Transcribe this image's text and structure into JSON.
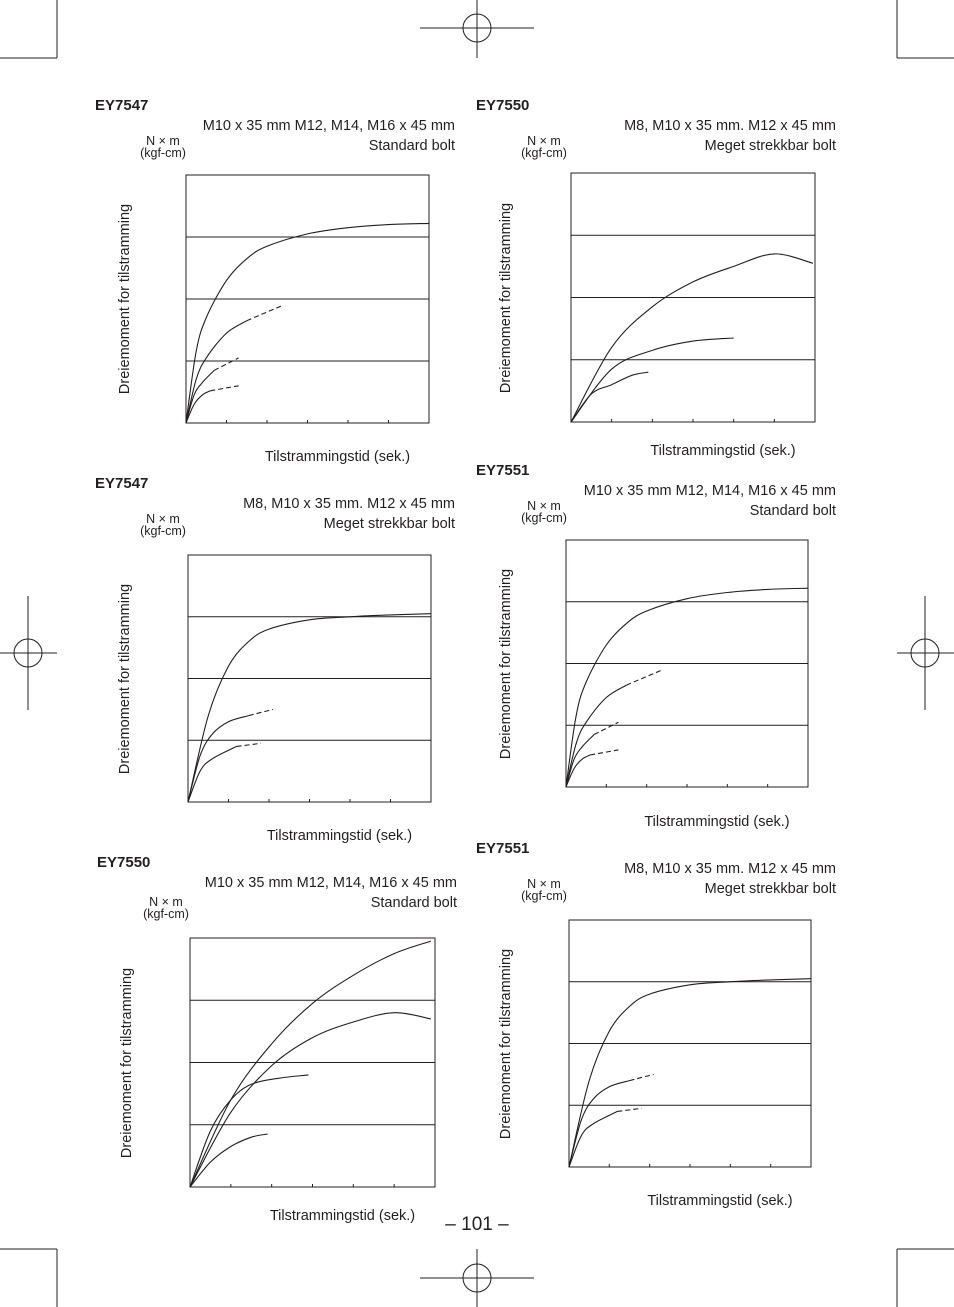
{
  "page": {
    "number_label": "– 101 –"
  },
  "chart_data": [
    {
      "type": "line",
      "title": "EY7547",
      "subtitle_lines": [
        "M10 x 35 mm M12, M14, M16 x 45 mm",
        "Standard bolt"
      ],
      "unit_lines": [
        "N × m",
        "(kgf-cm)"
      ],
      "ylabel": "Dreiemoment for tilstramming",
      "xlabel": "Tilstrammingstid (sek.)",
      "xlim": [
        0,
        6
      ],
      "ylim": [
        0,
        4
      ],
      "grid": "horizontal",
      "series": [
        {
          "x": [
            0,
            0.25,
            0.5,
            1,
            1.5,
            2,
            3,
            4,
            5,
            6
          ],
          "y": [
            0,
            1.15,
            1.7,
            2.3,
            2.65,
            2.85,
            3.05,
            3.15,
            3.2,
            3.22
          ]
        },
        {
          "x": [
            0,
            0.25,
            0.5,
            1,
            1.5
          ],
          "y": [
            0,
            0.7,
            1.05,
            1.45,
            1.65
          ]
        },
        {
          "x": [
            1.5,
            2.4
          ],
          "y": [
            1.65,
            1.9
          ],
          "dashed": true
        },
        {
          "x": [
            0,
            0.2,
            0.4,
            0.7
          ],
          "y": [
            0,
            0.45,
            0.65,
            0.85
          ]
        },
        {
          "x": [
            0.7,
            1.3
          ],
          "y": [
            0.85,
            1.05
          ],
          "dashed": true
        },
        {
          "x": [
            0,
            0.2,
            0.4,
            0.6
          ],
          "y": [
            0,
            0.3,
            0.45,
            0.52
          ]
        },
        {
          "x": [
            0.6,
            1.3
          ],
          "y": [
            0.52,
            0.6
          ],
          "dashed": true
        }
      ]
    },
    {
      "type": "line",
      "title": "EY7547",
      "subtitle_lines": [
        "M8, M10 x 35 mm. M12 x 45 mm",
        "Meget strekkbar bolt"
      ],
      "unit_lines": [
        "N × m",
        "(kgf-cm)"
      ],
      "ylabel": "Dreiemoment for tilstramming",
      "xlabel": "Tilstrammingstid (sek.)",
      "xlim": [
        0,
        6
      ],
      "ylim": [
        0,
        4
      ],
      "grid": "horizontal",
      "series": [
        {
          "x": [
            0,
            0.5,
            1,
            1.5,
            2,
            3,
            4,
            5,
            6
          ],
          "y": [
            0,
            1.4,
            2.2,
            2.6,
            2.8,
            2.95,
            3.0,
            3.03,
            3.05
          ]
        },
        {
          "x": [
            0,
            0.3,
            0.6,
            1,
            1.5
          ],
          "y": [
            0,
            0.75,
            1.1,
            1.3,
            1.4
          ]
        },
        {
          "x": [
            1.5,
            2.1
          ],
          "y": [
            1.4,
            1.5
          ],
          "dashed": true
        },
        {
          "x": [
            0,
            0.3,
            0.6,
            1.2
          ],
          "y": [
            0,
            0.5,
            0.7,
            0.9
          ]
        },
        {
          "x": [
            1.2,
            1.8
          ],
          "y": [
            0.9,
            0.95
          ],
          "dashed": true
        }
      ]
    },
    {
      "type": "line",
      "title": "EY7550",
      "subtitle_lines": [
        "M10 x 35 mm M12, M14, M16 x 45 mm",
        "Standard bolt"
      ],
      "unit_lines": [
        "N × m",
        "(kgf-cm)"
      ],
      "ylabel": "Dreiemoment for tilstramming",
      "xlabel": "Tilstrammingstid (sek.)",
      "xlim": [
        0,
        6
      ],
      "ylim": [
        0,
        4
      ],
      "grid": "horizontal",
      "series": [
        {
          "x": [
            0,
            1,
            2,
            3,
            4,
            5,
            5.9
          ],
          "y": [
            0,
            1.4,
            2.3,
            2.95,
            3.4,
            3.75,
            3.95
          ]
        },
        {
          "x": [
            0,
            1,
            2,
            3,
            4,
            5,
            5.9
          ],
          "y": [
            0,
            1.2,
            1.95,
            2.4,
            2.65,
            2.8,
            2.7
          ]
        },
        {
          "x": [
            0,
            0.5,
            1,
            1.5,
            2.2,
            2.9
          ],
          "y": [
            0,
            0.9,
            1.4,
            1.65,
            1.75,
            1.8
          ]
        },
        {
          "x": [
            0,
            0.5,
            1,
            1.5,
            1.9
          ],
          "y": [
            0,
            0.4,
            0.65,
            0.8,
            0.85
          ]
        }
      ]
    },
    {
      "type": "line",
      "title": "EY7550",
      "subtitle_lines": [
        "M8, M10 x 35 mm. M12 x 45 mm",
        "Meget strekkbar bolt"
      ],
      "unit_lines": [
        "N × m",
        "(kgf-cm)"
      ],
      "ylabel": "Dreiemoment for tilstramming",
      "xlabel": "Tilstrammingstid (sek.)",
      "xlim": [
        0,
        6
      ],
      "ylim": [
        0,
        4
      ],
      "grid": "horizontal",
      "series": [
        {
          "x": [
            0,
            1,
            2,
            3,
            4,
            5,
            5.95
          ],
          "y": [
            0,
            1.2,
            1.85,
            2.25,
            2.5,
            2.7,
            2.55
          ]
        },
        {
          "x": [
            0,
            1,
            2,
            3,
            4
          ],
          "y": [
            0,
            0.85,
            1.15,
            1.3,
            1.35
          ]
        },
        {
          "x": [
            0,
            0.5,
            1,
            1.5,
            1.9
          ],
          "y": [
            0,
            0.45,
            0.6,
            0.75,
            0.8
          ]
        }
      ]
    },
    {
      "type": "line",
      "title": "EY7551",
      "subtitle_lines": [
        "M10 x 35 mm M12, M14, M16 x 45 mm",
        "Standard bolt"
      ],
      "unit_lines": [
        "N × m",
        "(kgf-cm)"
      ],
      "ylabel": "Dreiemoment for tilstramming",
      "xlabel": "Tilstrammingstid (sek.)",
      "xlim": [
        0,
        6
      ],
      "ylim": [
        0,
        4
      ],
      "grid": "horizontal",
      "series": [
        {
          "x": [
            0,
            0.25,
            0.5,
            1,
            1.5,
            2,
            3,
            4,
            5,
            6
          ],
          "y": [
            0,
            1.15,
            1.7,
            2.3,
            2.65,
            2.85,
            3.05,
            3.15,
            3.2,
            3.22
          ]
        },
        {
          "x": [
            0,
            0.25,
            0.5,
            1,
            1.5
          ],
          "y": [
            0,
            0.7,
            1.05,
            1.45,
            1.65
          ]
        },
        {
          "x": [
            1.5,
            2.4
          ],
          "y": [
            1.65,
            1.9
          ],
          "dashed": true
        },
        {
          "x": [
            0,
            0.2,
            0.4,
            0.7
          ],
          "y": [
            0,
            0.45,
            0.65,
            0.85
          ]
        },
        {
          "x": [
            0.7,
            1.3
          ],
          "y": [
            0.85,
            1.05
          ],
          "dashed": true
        },
        {
          "x": [
            0,
            0.2,
            0.4,
            0.6
          ],
          "y": [
            0,
            0.3,
            0.45,
            0.52
          ]
        },
        {
          "x": [
            0.6,
            1.3
          ],
          "y": [
            0.52,
            0.6
          ],
          "dashed": true
        }
      ]
    },
    {
      "type": "line",
      "title": "EY7551",
      "subtitle_lines": [
        "M8, M10 x 35 mm. M12 x 45 mm",
        "Meget strekkbar bolt"
      ],
      "unit_lines": [
        "N × m",
        "(kgf-cm)"
      ],
      "ylabel": "Dreiemoment for tilstramming",
      "xlabel": "Tilstrammingstid (sek.)",
      "xlim": [
        0,
        6
      ],
      "ylim": [
        0,
        4
      ],
      "grid": "horizontal",
      "series": [
        {
          "x": [
            0,
            0.5,
            1,
            1.5,
            2,
            3,
            4,
            5,
            6
          ],
          "y": [
            0,
            1.4,
            2.2,
            2.6,
            2.8,
            2.95,
            3.0,
            3.03,
            3.05
          ]
        },
        {
          "x": [
            0,
            0.3,
            0.6,
            1,
            1.5
          ],
          "y": [
            0,
            0.75,
            1.1,
            1.3,
            1.4
          ]
        },
        {
          "x": [
            1.5,
            2.1
          ],
          "y": [
            1.4,
            1.5
          ],
          "dashed": true
        },
        {
          "x": [
            0,
            0.3,
            0.6,
            1.2
          ],
          "y": [
            0,
            0.5,
            0.7,
            0.9
          ]
        },
        {
          "x": [
            1.2,
            1.8
          ],
          "y": [
            0.9,
            0.95
          ],
          "dashed": true
        }
      ]
    }
  ]
}
